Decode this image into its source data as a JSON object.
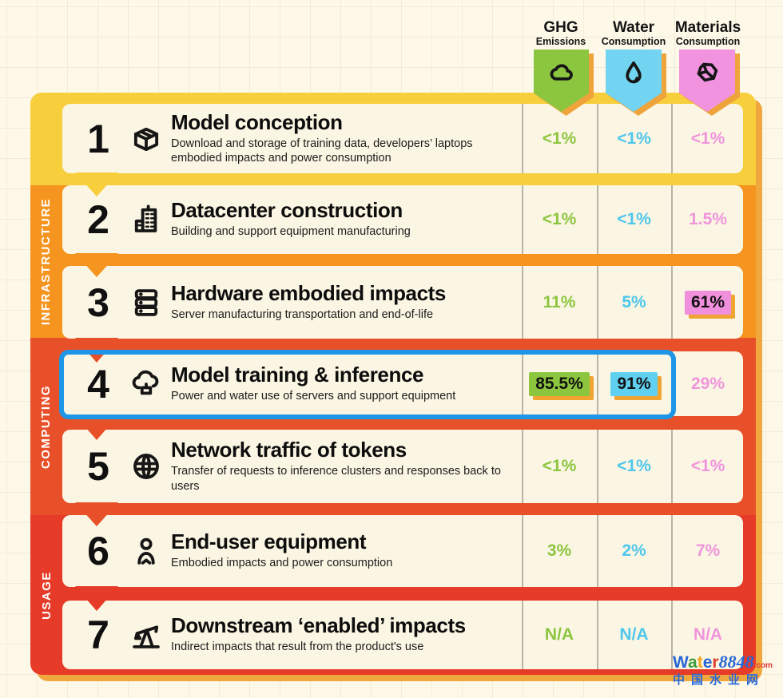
{
  "header": {
    "columns": [
      {
        "label_top": "GHG",
        "label_bottom": "Emissions",
        "icon": "cloud-icon",
        "banner_color": "#8CC63F",
        "value_color": "#8CC63F"
      },
      {
        "label_top": "Water",
        "label_bottom": "Consumption",
        "icon": "droplet-icon",
        "banner_color": "#72D4F1",
        "value_color": "#4EC7EC"
      },
      {
        "label_top": "Materials",
        "label_bottom": "Consumption",
        "icon": "rock-icon",
        "banner_color": "#F193DE",
        "value_color": "#F095DC"
      }
    ]
  },
  "sections": [
    {
      "label": "",
      "color": "#F7CE3B"
    },
    {
      "label": "INFRASTRUCTURE",
      "color": "#F5941F"
    },
    {
      "label": "COMPUTING",
      "color": "#E8502A"
    },
    {
      "label": "USAGE",
      "color": "#E63B28"
    }
  ],
  "rows": [
    {
      "number": "1",
      "icon": "package-icon",
      "title": "Model conception",
      "description": "Download and storage of training data, developers’ laptops embodied impacts and power consumption",
      "values": [
        {
          "text": "<1%"
        },
        {
          "text": "<1%"
        },
        {
          "text": "<1%"
        }
      ]
    },
    {
      "number": "2",
      "icon": "building-icon",
      "title": "Datacenter construction",
      "description": "Building and support equipment manufacturing",
      "values": [
        {
          "text": "<1%"
        },
        {
          "text": "<1%"
        },
        {
          "text": "1.5%"
        }
      ]
    },
    {
      "number": "3",
      "icon": "server-icon",
      "title": "Hardware embodied impacts",
      "description": "Server manufacturing transportation and end-of-life",
      "values": [
        {
          "text": "11%"
        },
        {
          "text": "5%"
        },
        {
          "text": "61%",
          "highlight": "#F08FDC"
        }
      ]
    },
    {
      "number": "4",
      "icon": "ai-chip-icon",
      "title": "Model training & inference",
      "description": "Power and water use of servers and support equipment",
      "values": [
        {
          "text": "85.5%",
          "highlight": "#8CC63F"
        },
        {
          "text": "91%",
          "highlight": "#5FD0EF"
        },
        {
          "text": "29%"
        }
      ],
      "selected": true
    },
    {
      "number": "5",
      "icon": "network-globe-icon",
      "title": "Network traffic of tokens",
      "description": "Transfer of requests to inference clusters and responses back to users",
      "values": [
        {
          "text": "<1%"
        },
        {
          "text": "<1%"
        },
        {
          "text": "<1%"
        }
      ]
    },
    {
      "number": "6",
      "icon": "user-icon",
      "title": "End-user equipment",
      "description": "Embodied impacts and power consumption",
      "values": [
        {
          "text": "3%"
        },
        {
          "text": "2%"
        },
        {
          "text": "7%"
        }
      ]
    },
    {
      "number": "7",
      "icon": "pumpjack-icon",
      "title": "Downstream ‘enabled’ impacts",
      "description": "Indirect impacts that result from the product's use",
      "values": [
        {
          "text": "N/A"
        },
        {
          "text": "N/A"
        },
        {
          "text": "N/A"
        }
      ]
    }
  ],
  "accents": {
    "selection_border": "#1E96E8",
    "chip_shadow": "#F0A432",
    "frame_shadow": "#EFA73E",
    "banner_shadow": "#EFA33B",
    "divider": "#B8B4A8",
    "card_background": "#FBF5E3"
  },
  "watermark": {
    "letters": [
      [
        "W",
        "#2767D6"
      ],
      [
        "a",
        "#3F9E3C"
      ],
      [
        "t",
        "#F4A51E"
      ],
      [
        "e",
        "#2767D6"
      ],
      [
        "r",
        "#E23B2E"
      ]
    ],
    "number": "8848",
    "number_color": "#2767D6",
    "tld": ".com",
    "tld_color": "#E23B2E",
    "line2": "中国水业网",
    "line2_color": "#2A69D8"
  }
}
